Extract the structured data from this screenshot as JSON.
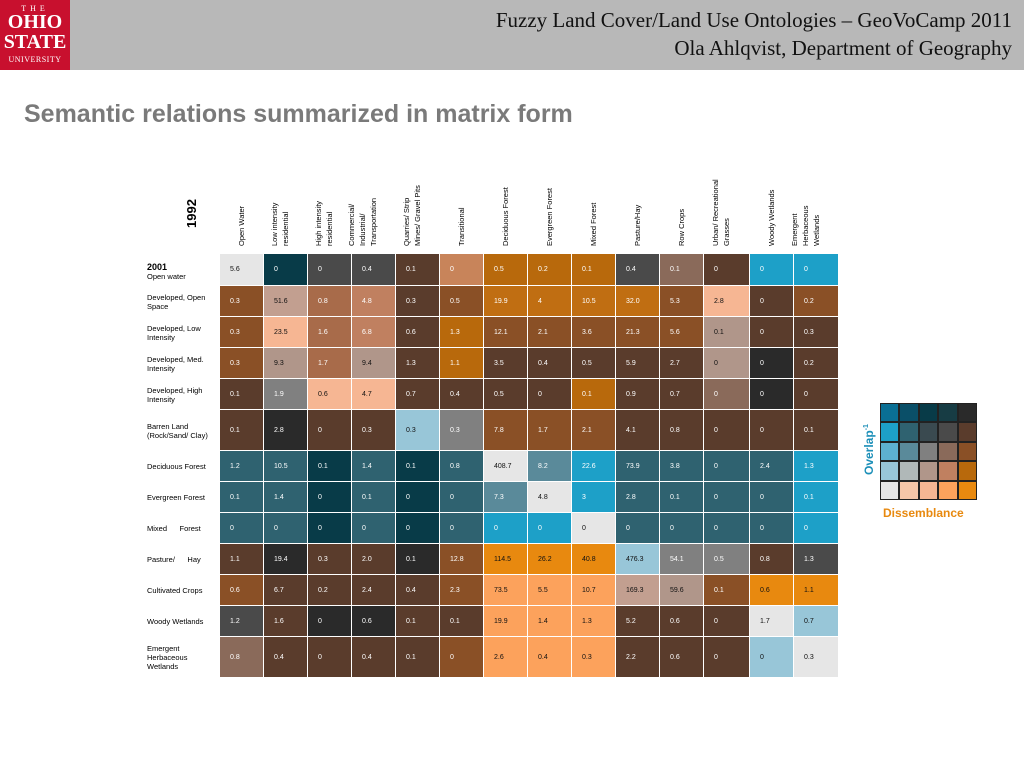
{
  "header": {
    "logo": {
      "line1": "THE",
      "line2": "OHIO",
      "line3": "STATE",
      "line4": "UNIVERSITY"
    },
    "title": "Fuzzy Land Cover/Land Use Ontologies – GeoVoCamp 2011",
    "subtitle": "Ola Ahlqvist, Department of Geography"
  },
  "slide": {
    "title": "Semantic relations summarized in matrix form"
  },
  "matrix": {
    "col_year": "1992",
    "row_year": "2001",
    "columns": [
      "Open Water",
      "Low intensity\nresidential",
      "High intensity\nresidential",
      "Commercial/\nIndustrial/\nTransportation",
      "Quarries/ Strip\nMines/ Gravel Pits",
      "Transitional",
      "Deciduous Forest",
      "Evergreen Forest",
      "Mixed Forest",
      "Pasture/Hay",
      "Row Crops",
      "Urban/ Recreational\nGrasses",
      "Woody Wetlands",
      "Emergent\nHerbaceous\nWetlands"
    ],
    "rows": [
      {
        "label": "Open water",
        "values": [
          "5.6",
          "0",
          "0",
          "0.4",
          "0.1",
          "0",
          "0.5",
          "0.2",
          "0.1",
          "0.4",
          "0.1",
          "0",
          "0",
          "0"
        ],
        "colors": [
          "#e6e6e6",
          "#083b48",
          "#4a4a4a",
          "#4a4a4a",
          "#593c2c",
          "#c8845a",
          "#b8690c",
          "#b8690c",
          "#b8690c",
          "#4a4a4a",
          "#8a6a5a",
          "#5a3c2c",
          "#1da0c8",
          "#1da0c8"
        ]
      },
      {
        "label": "Developed, Open\nSpace",
        "values": [
          "0.3",
          "51.6",
          "0.8",
          "4.8",
          "0.3",
          "0.5",
          "19.9",
          "4",
          "10.5",
          "32.0",
          "5.3",
          "2.8",
          "0",
          "0.2"
        ],
        "colors": [
          "#8a5026",
          "#c29f90",
          "#a86b4a",
          "#c08060",
          "#5a3c2c",
          "#8a5026",
          "#c06e12",
          "#c06e12",
          "#c06e12",
          "#c06e12",
          "#8a5026",
          "#f6b693",
          "#5a3c2c",
          "#8a5026"
        ]
      },
      {
        "label": "Developed, Low\nIntensity",
        "values": [
          "0.3",
          "23.5",
          "1.6",
          "6.8",
          "0.6",
          "1.3",
          "12.1",
          "2.1",
          "3.6",
          "21.3",
          "5.6",
          "0.1",
          "0",
          "0.3"
        ],
        "colors": [
          "#8a5026",
          "#f6b693",
          "#a86b4a",
          "#c08060",
          "#5a3c2c",
          "#b8690c",
          "#8a5026",
          "#8a5026",
          "#8a5026",
          "#8a5026",
          "#8a5026",
          "#b0968a",
          "#5a3c2c",
          "#5a3c2c"
        ]
      },
      {
        "label": "Developed, Med.\nIntensity",
        "values": [
          "0.3",
          "9.3",
          "1.7",
          "9.4",
          "1.3",
          "1.1",
          "3.5",
          "0.4",
          "0.5",
          "5.9",
          "2.7",
          "0",
          "0",
          "0.2"
        ],
        "colors": [
          "#8a5026",
          "#b0968a",
          "#a86b4a",
          "#b0968a",
          "#5a3c2c",
          "#b8690c",
          "#5a3c2c",
          "#5a3c2c",
          "#5a3c2c",
          "#5a3c2c",
          "#5a3c2c",
          "#b0968a",
          "#2a2a2a",
          "#5a3c2c"
        ]
      },
      {
        "label": "Developed, High\nIntensity",
        "values": [
          "0.1",
          "1.9",
          "0.6",
          "4.7",
          "0.7",
          "0.4",
          "0.5",
          "0",
          "0.1",
          "0.9",
          "0.7",
          "0",
          "0",
          "0"
        ],
        "colors": [
          "#5a3c2c",
          "#808080",
          "#f6b693",
          "#f6b693",
          "#5a3c2c",
          "#5a3c2c",
          "#5a3c2c",
          "#5a3c2c",
          "#b8690c",
          "#5a3c2c",
          "#5a3c2c",
          "#8a6a5a",
          "#2a2a2a",
          "#5a3c2c"
        ]
      },
      {
        "label": "Barren Land\n(Rock/Sand/ Clay)",
        "values": [
          "0.1",
          "2.8",
          "0",
          "0.3",
          "0.3",
          "0.3",
          "7.8",
          "1.7",
          "2.1",
          "4.1",
          "0.8",
          "0",
          "0",
          "0.1"
        ],
        "colors": [
          "#5a3c2c",
          "#2a2a2a",
          "#5a3c2c",
          "#5a3c2c",
          "#98c6d8",
          "#808080",
          "#8a5026",
          "#8a5026",
          "#8a5026",
          "#5a3c2c",
          "#5a3c2c",
          "#5a3c2c",
          "#5a3c2c",
          "#5a3c2c"
        ]
      },
      {
        "label": "Deciduous Forest",
        "values": [
          "1.2",
          "10.5",
          "0.1",
          "1.4",
          "0.1",
          "0.8",
          "408.7",
          "8.2",
          "22.6",
          "73.9",
          "3.8",
          "0",
          "2.4",
          "1.3"
        ],
        "colors": [
          "#2f6270",
          "#2f6270",
          "#083b48",
          "#2f6270",
          "#083b48",
          "#2f6270",
          "#e6e6e6",
          "#5a8a9a",
          "#1da0c8",
          "#2f6270",
          "#2f6270",
          "#2f6270",
          "#2f6270",
          "#1da0c8"
        ]
      },
      {
        "label": "Evergreen Forest",
        "values": [
          "0.1",
          "1.4",
          "0",
          "0.1",
          "0",
          "0",
          "7.3",
          "4.8",
          "3",
          "2.8",
          "0.1",
          "0",
          "0",
          "0.1"
        ],
        "colors": [
          "#2f6270",
          "#2f6270",
          "#083b48",
          "#2f6270",
          "#083b48",
          "#2f6270",
          "#5a8a9a",
          "#e6e6e6",
          "#1da0c8",
          "#2f6270",
          "#2f6270",
          "#2f6270",
          "#2f6270",
          "#1da0c8"
        ]
      },
      {
        "label": "Mixed      Forest",
        "values": [
          "0",
          "0",
          "0",
          "0",
          "0",
          "0",
          "0",
          "0",
          "0",
          "0",
          "0",
          "0",
          "0",
          "0"
        ],
        "colors": [
          "#2f6270",
          "#2f6270",
          "#083b48",
          "#2f6270",
          "#083b48",
          "#2f6270",
          "#1da0c8",
          "#1da0c8",
          "#e6e6e6",
          "#2f6270",
          "#2f6270",
          "#2f6270",
          "#2f6270",
          "#1da0c8"
        ]
      },
      {
        "label": "Pasture/      Hay",
        "values": [
          "1.1",
          "19.4",
          "0.3",
          "2.0",
          "0.1",
          "12.8",
          "114.5",
          "26.2",
          "40.8",
          "476.3",
          "54.1",
          "0.5",
          "0.8",
          "1.3"
        ],
        "colors": [
          "#5a3c2c",
          "#2a2a2a",
          "#5a3c2c",
          "#5a3c2c",
          "#2a2a2a",
          "#8a5026",
          "#e8890f",
          "#e8890f",
          "#e8890f",
          "#98c6d8",
          "#808080",
          "#808080",
          "#5a3c2c",
          "#4a4a4a"
        ]
      },
      {
        "label": "Cultivated Crops",
        "values": [
          "0.6",
          "6.7",
          "0.2",
          "2.4",
          "0.4",
          "2.3",
          "73.5",
          "5.5",
          "10.7",
          "169.3",
          "59.6",
          "0.1",
          "0.6",
          "1.1"
        ],
        "colors": [
          "#8a5026",
          "#5a3c2c",
          "#5a3c2c",
          "#5a3c2c",
          "#5a3c2c",
          "#8a5026",
          "#fca25c",
          "#fca25c",
          "#fca25c",
          "#c29f90",
          "#b0968a",
          "#8a5026",
          "#e8890f",
          "#e8890f"
        ]
      },
      {
        "label": "Woody Wetlands",
        "values": [
          "1.2",
          "1.6",
          "0",
          "0.6",
          "0.1",
          "0.1",
          "19.9",
          "1.4",
          "1.3",
          "5.2",
          "0.6",
          "0",
          "1.7",
          "0.7"
        ],
        "colors": [
          "#4a4a4a",
          "#5a3c2c",
          "#2a2a2a",
          "#2a2a2a",
          "#5a3c2c",
          "#5a3c2c",
          "#fca25c",
          "#fca25c",
          "#fca25c",
          "#5a3c2c",
          "#5a3c2c",
          "#5a3c2c",
          "#e6e6e6",
          "#98c6d8"
        ]
      },
      {
        "label": "Emergent\nHerbaceous\nWetlands",
        "values": [
          "0.8",
          "0.4",
          "0",
          "0.4",
          "0.1",
          "0",
          "2.6",
          "0.4",
          "0.3",
          "2.2",
          "0.6",
          "0",
          "0",
          "0.3"
        ],
        "colors": [
          "#8a6a5a",
          "#5a3c2c",
          "#5a3c2c",
          "#5a3c2c",
          "#5a3c2c",
          "#8a5026",
          "#fca25c",
          "#fca25c",
          "#fca25c",
          "#5a3c2c",
          "#5a3c2c",
          "#5a3c2c",
          "#98c6d8",
          "#e6e6e6"
        ]
      }
    ]
  },
  "legend": {
    "overlap_label": "Overlap",
    "overlap_sup": "-1",
    "dissemblance_label": "Dissemblance",
    "grid": [
      [
        "#0a6f94",
        "#0a4f68",
        "#083b48",
        "#173c44",
        "#2a2a2a"
      ],
      [
        "#1da0c8",
        "#2f6270",
        "#3a4a50",
        "#4a4a4a",
        "#5a3c2c"
      ],
      [
        "#5db0d0",
        "#5a8a9a",
        "#808080",
        "#8a6a5a",
        "#8a5026"
      ],
      [
        "#98c6d8",
        "#b0b8b8",
        "#b0968a",
        "#c08060",
        "#b8690c"
      ],
      [
        "#e6e6e6",
        "#f6c6a8",
        "#f6b693",
        "#fca25c",
        "#e8890f"
      ]
    ]
  }
}
